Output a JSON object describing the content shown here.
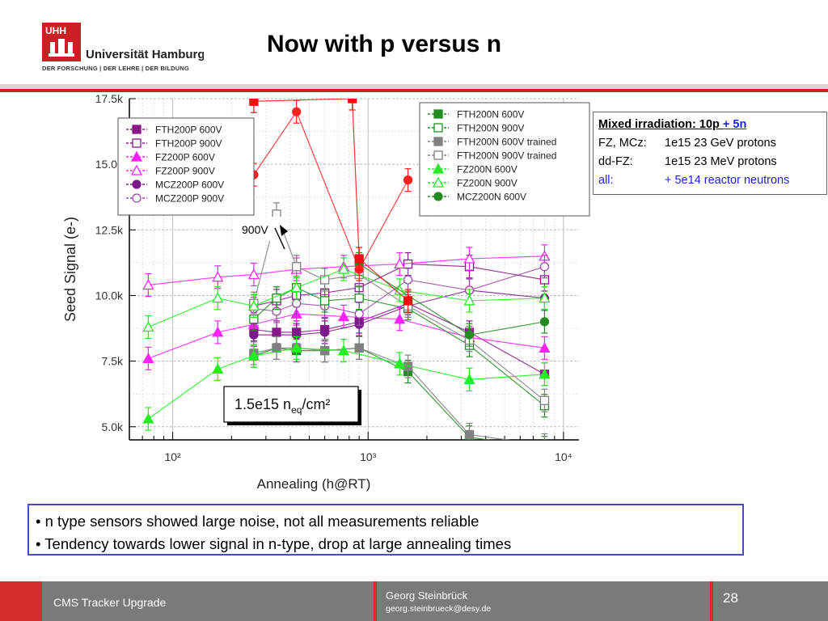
{
  "header": {
    "logo_mark": "UHH",
    "logo_name": "Universität Hamburg",
    "logo_tagline": "DER FORSCHUNG | DER LEHRE | DER BILDUNG",
    "title": "Now with p versus n"
  },
  "colors": {
    "accent_red": "#cc1f24",
    "footer_grey": "#7a7a7a",
    "box_border": "#4b4bc8"
  },
  "info_box": {
    "title_a": "Mixed irradiation: 10p ",
    "title_b": "+ 5n",
    "row1_label": "FZ, MCz:",
    "row1_value": "1e15 23 GeV protons",
    "row2_label": "dd-FZ:",
    "row2_value": "1e15 23 MeV protons",
    "row3_label": "all:",
    "row3_value": "+ 5e14 reactor neutrons"
  },
  "bullets": [
    "• n type sensors showed large noise, not all measurements reliable",
    "• Tendency towards lower signal in n-type, drop at large annealing times"
  ],
  "footer": {
    "left": "CMS Tracker Upgrade",
    "name": "Georg Steinbrück",
    "email": "georg.steinbrueck@desy.de",
    "page": "28"
  },
  "chart_data": {
    "type": "scatter",
    "xlabel": "Annealing (h@RT)",
    "ylabel": "Seed Signal (e-)",
    "x_scale": "log",
    "xlim": [
      60,
      12000
    ],
    "ylim": [
      4500,
      17500
    ],
    "x_ticks": [
      "10²",
      "10³",
      "10⁴"
    ],
    "y_ticks": [
      "5.0k",
      "7.5k",
      "10.0k",
      "12.5k",
      "15.0k",
      "17.5k"
    ],
    "grid": true,
    "fluence_label": "1.5e15 n",
    "fluence_sub": "eq",
    "fluence_unit": "/cm²",
    "annotation": "900V",
    "series": [
      {
        "name": "FTH200P 600V",
        "color": "#8a1a8a",
        "marker": "square",
        "filled": true,
        "x": [
          260,
          340,
          430,
          600,
          900,
          1600,
          3300,
          8000
        ],
        "y": [
          8700,
          8600,
          8600,
          8700,
          9000,
          9700,
          8600,
          7000
        ]
      },
      {
        "name": "FTH200P 900V",
        "color": "#8a1a8a",
        "marker": "square",
        "filled": false,
        "x": [
          260,
          340,
          430,
          600,
          900,
          1600,
          3300,
          8000
        ],
        "y": [
          9600,
          9800,
          10000,
          10100,
          10300,
          11200,
          11100,
          10600
        ]
      },
      {
        "name": "FZ200P 600V",
        "color": "#ff22ff",
        "marker": "triangle",
        "filled": true,
        "x": [
          75,
          170,
          260,
          430,
          750,
          1450,
          3300,
          8000
        ],
        "y": [
          7600,
          8600,
          8900,
          9300,
          9200,
          9100,
          8400,
          8000
        ]
      },
      {
        "name": "FZ200P 900V",
        "color": "#ff22ff",
        "marker": "triangle",
        "filled": false,
        "x": [
          75,
          170,
          260,
          430,
          750,
          1450,
          3300,
          8000
        ],
        "y": [
          10400,
          10700,
          10800,
          11000,
          11100,
          11200,
          11400,
          11500
        ]
      },
      {
        "name": "MCZ200P 600V",
        "color": "#7a1a8a",
        "marker": "circle",
        "filled": true,
        "x": [
          260,
          430,
          600,
          900,
          1600,
          3300,
          8000
        ],
        "y": [
          8500,
          8500,
          8600,
          8900,
          9600,
          10200,
          9900
        ]
      },
      {
        "name": "MCZ200P 900V",
        "color": "#9a4aaa",
        "marker": "circle",
        "filled": false,
        "x": [
          260,
          340,
          430,
          600,
          900,
          1600,
          3300,
          8000
        ],
        "y": [
          9500,
          9400,
          9700,
          9600,
          9300,
          10600,
          10200,
          11100
        ]
      },
      {
        "name": "FTH200N 600V",
        "color": "#228b22",
        "marker": "square",
        "filled": true,
        "x": [
          260,
          340,
          430,
          600,
          900,
          1600,
          3300,
          8000
        ],
        "y": [
          7700,
          8000,
          7900,
          7900,
          8000,
          7100,
          4600,
          4200
        ]
      },
      {
        "name": "FTH200N 900V",
        "color": "#228b22",
        "marker": "square",
        "filled": false,
        "x": [
          260,
          340,
          430,
          600,
          900,
          1600,
          3300,
          8000
        ],
        "y": [
          9100,
          9900,
          10300,
          9800,
          9900,
          9500,
          8100,
          5800
        ]
      },
      {
        "name": "FTH200N 600V trained",
        "color": "#808080",
        "marker": "square",
        "filled": true,
        "x": [
          260,
          340,
          430,
          600,
          900,
          1600,
          3300,
          8000
        ],
        "y": [
          7800,
          8000,
          8000,
          7900,
          8000,
          7300,
          4700,
          4300
        ]
      },
      {
        "name": "FTH200N 900V trained",
        "color": "#808080",
        "marker": "square",
        "filled": false,
        "x": [
          260,
          340,
          430,
          600,
          900,
          1600,
          3300,
          8000
        ],
        "y": [
          9700,
          13100,
          11100,
          10600,
          10800,
          9600,
          8300,
          6000
        ]
      },
      {
        "name": "FZ200N 600V",
        "color": "#22ee22",
        "marker": "triangle",
        "filled": true,
        "x": [
          75,
          170,
          260,
          430,
          750,
          1450,
          3300,
          8000
        ],
        "y": [
          5300,
          7200,
          7700,
          8000,
          7900,
          7400,
          6800,
          7000
        ]
      },
      {
        "name": "FZ200N 900V",
        "color": "#22ee22",
        "marker": "triangle",
        "filled": false,
        "x": [
          75,
          170,
          260,
          430,
          750,
          1450,
          3300,
          8000
        ],
        "y": [
          8800,
          9900,
          9600,
          10300,
          11000,
          10200,
          9800,
          9900
        ]
      },
      {
        "name": "MCZ200N 600V",
        "color": "#228b22",
        "marker": "circle",
        "filled": true,
        "x": [
          900,
          3300,
          8000
        ],
        "y": [
          11200,
          8500,
          9000
        ]
      },
      {
        "name": "",
        "color": "#ff2020",
        "marker": "circle",
        "filled": true,
        "x": [
          260,
          430,
          900,
          1600
        ],
        "y": [
          14600,
          17000,
          11000,
          14400
        ]
      },
      {
        "name": "",
        "color": "#ee1111",
        "marker": "square",
        "filled": true,
        "x": [
          260,
          830,
          900,
          1600
        ],
        "y": [
          17400,
          17500,
          11400,
          9800
        ]
      }
    ]
  }
}
